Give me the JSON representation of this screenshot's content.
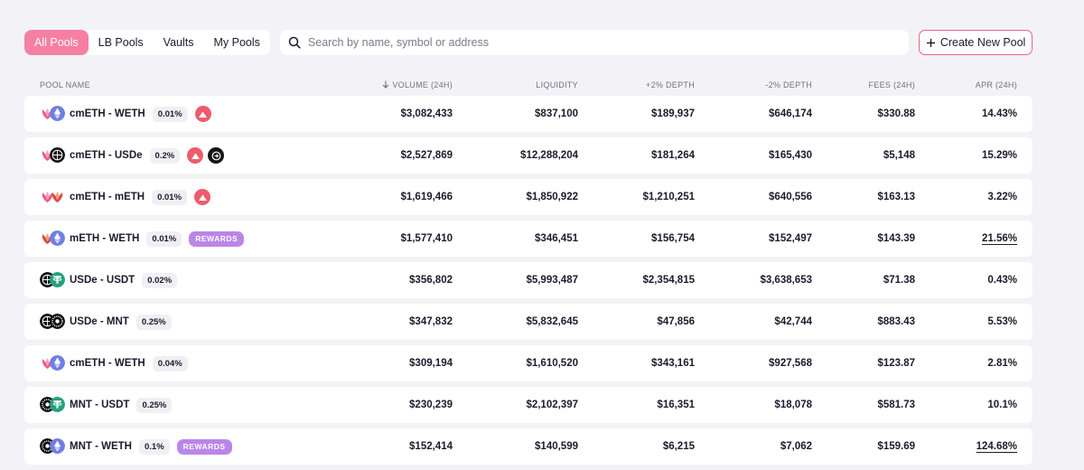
{
  "tabs": [
    {
      "label": "All Pools",
      "active": true
    },
    {
      "label": "LB Pools",
      "active": false
    },
    {
      "label": "Vaults",
      "active": false
    },
    {
      "label": "My Pools",
      "active": false
    }
  ],
  "search": {
    "placeholder": "Search by name, symbol or address",
    "value": ""
  },
  "create_button": {
    "label": "Create New Pool",
    "icon": "plus-icon"
  },
  "columns": {
    "name": "POOL NAME",
    "volume": "VOLUME (24H)",
    "volume_sort_icon": "arrow-down-icon",
    "liquidity": "LIQUIDITY",
    "depth_up": "+2% DEPTH",
    "depth_down": "-2% DEPTH",
    "fees": "FEES (24H)",
    "apr": "APR (24H)"
  },
  "colors": {
    "accent": "#f67fa4",
    "rewards": "#ba86e9",
    "cm_badge": "#ee5c6b"
  },
  "rows": [
    {
      "tokens": [
        "cmeth",
        "weth"
      ],
      "pair": "cmETH - WETH",
      "fee": "0.01%",
      "badges": [
        "cm"
      ],
      "rewards": "",
      "volume": "$3,082,433",
      "liquidity": "$837,100",
      "depth_up": "$189,937",
      "depth_down": "$646,174",
      "fees": "$330.88",
      "apr": "14.43%",
      "apr_underline": false
    },
    {
      "tokens": [
        "cmeth",
        "usde"
      ],
      "pair": "cmETH - USDe",
      "fee": "0.2%",
      "badges": [
        "cm",
        "eth"
      ],
      "rewards": "",
      "volume": "$2,527,869",
      "liquidity": "$12,288,204",
      "depth_up": "$181,264",
      "depth_down": "$165,430",
      "fees": "$5,148",
      "apr": "15.29%",
      "apr_underline": false
    },
    {
      "tokens": [
        "cmeth",
        "meth"
      ],
      "pair": "cmETH - mETH",
      "fee": "0.01%",
      "badges": [
        "cm"
      ],
      "rewards": "",
      "volume": "$1,619,466",
      "liquidity": "$1,850,922",
      "depth_up": "$1,210,251",
      "depth_down": "$640,556",
      "fees": "$163.13",
      "apr": "3.22%",
      "apr_underline": false
    },
    {
      "tokens": [
        "meth",
        "weth"
      ],
      "pair": "mETH - WETH",
      "fee": "0.01%",
      "badges": [],
      "rewards": "REWARDS",
      "volume": "$1,577,410",
      "liquidity": "$346,451",
      "depth_up": "$156,754",
      "depth_down": "$152,497",
      "fees": "$143.39",
      "apr": "21.56%",
      "apr_underline": true
    },
    {
      "tokens": [
        "usde",
        "usdt"
      ],
      "pair": "USDe - USDT",
      "fee": "0.02%",
      "badges": [],
      "rewards": "",
      "volume": "$356,802",
      "liquidity": "$5,993,487",
      "depth_up": "$2,354,815",
      "depth_down": "$3,638,653",
      "fees": "$71.38",
      "apr": "0.43%",
      "apr_underline": false
    },
    {
      "tokens": [
        "usde",
        "mnt"
      ],
      "pair": "USDe - MNT",
      "fee": "0.25%",
      "badges": [],
      "rewards": "",
      "volume": "$347,832",
      "liquidity": "$5,832,645",
      "depth_up": "$47,856",
      "depth_down": "$42,744",
      "fees": "$883.43",
      "apr": "5.53%",
      "apr_underline": false
    },
    {
      "tokens": [
        "cmeth",
        "weth"
      ],
      "pair": "cmETH - WETH",
      "fee": "0.04%",
      "badges": [],
      "rewards": "",
      "volume": "$309,194",
      "liquidity": "$1,610,520",
      "depth_up": "$343,161",
      "depth_down": "$927,568",
      "fees": "$123.87",
      "apr": "2.81%",
      "apr_underline": false
    },
    {
      "tokens": [
        "mnt",
        "usdt"
      ],
      "pair": "MNT - USDT",
      "fee": "0.25%",
      "badges": [],
      "rewards": "",
      "volume": "$230,239",
      "liquidity": "$2,102,397",
      "depth_up": "$16,351",
      "depth_down": "$18,078",
      "fees": "$581.73",
      "apr": "10.1%",
      "apr_underline": false
    },
    {
      "tokens": [
        "mnt",
        "weth"
      ],
      "pair": "MNT - WETH",
      "fee": "0.1%",
      "badges": [],
      "rewards": "REWARDS",
      "volume": "$152,414",
      "liquidity": "$140,599",
      "depth_up": "$6,215",
      "depth_down": "$7,062",
      "fees": "$159.69",
      "apr": "124.68%",
      "apr_underline": true
    }
  ]
}
